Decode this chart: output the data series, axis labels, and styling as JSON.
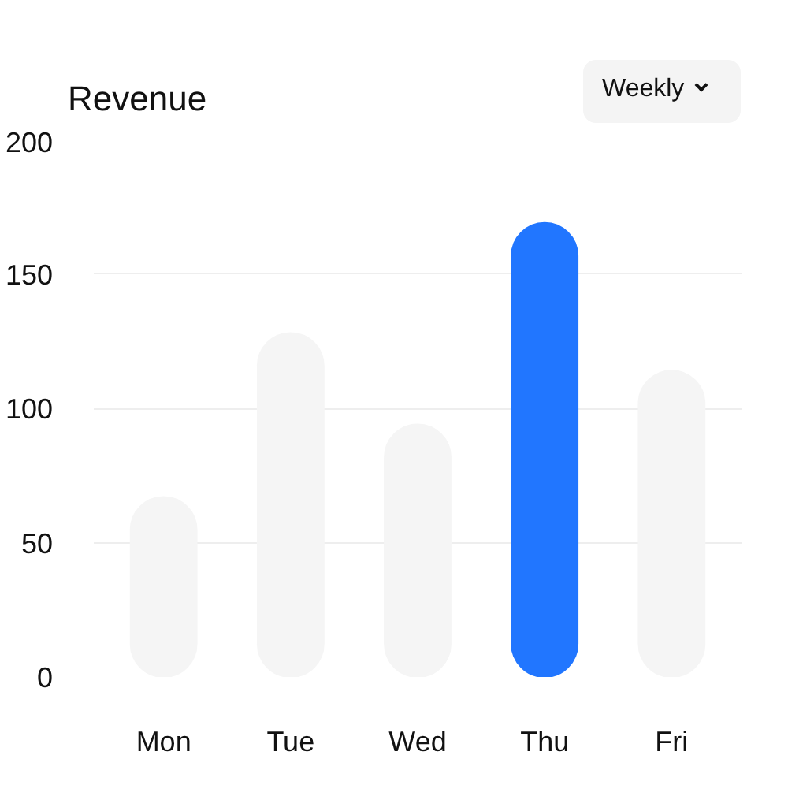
{
  "chart_data": {
    "type": "bar",
    "title": "Revenue",
    "annotations": [
      "Weekly"
    ],
    "categories": [
      "Mon",
      "Tue",
      "Wed",
      "Thu",
      "Fri"
    ],
    "values": [
      67,
      128,
      94,
      169,
      114
    ],
    "colors": [
      "#f5f5f5",
      "#f5f5f5",
      "#f5f5f5",
      "#2176ff",
      "#f5f5f5"
    ],
    "ylim": [
      0,
      200
    ],
    "yticks": [
      0,
      50,
      100,
      150,
      200
    ],
    "grid": "y"
  }
}
